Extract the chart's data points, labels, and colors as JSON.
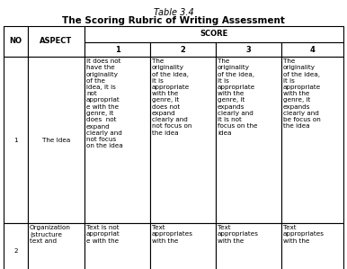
{
  "title1": "Table 3.4",
  "title2": "The Scoring Rubric of Writing Assessment",
  "score_header": "SCORE",
  "sub_headers": [
    "1",
    "2",
    "3",
    "4"
  ],
  "row1_no": "1",
  "row1_aspect": "The Idea",
  "row1_scores": [
    "It does not\nhave the\noriginality\nof the\nidea, it is\nnot\nappropriat\ne with the\ngenre, it\ndoes  not\nexpand\nclearly and\nnot focus\non the idea",
    "The\noriginality\nof the idea,\nit is\nappropriate\nwith the\ngenre, it\ndoes not\nexpand\nclearly and\nnot focus on\nthe idea",
    "The\noriginality\nof the idea,\nit is\nappropriate\nwith the\ngenre, it\nexpands\nclearly and\nit is not\nfocus on the\nidea",
    "The\noriginality\nof the idea,\nit is\nappropriate\nwith the\ngenre, it\nexpands\nclearly and\nbe focus on\nthe idea"
  ],
  "row2_no": "2",
  "row2_aspect": "Organization\n(structure\ntext and",
  "row2_scores": [
    "Text is not\nappropriat\ne with the",
    "Text\nappropriates\nwith the",
    "Text\nappropriates\nwith the",
    "Text\nappropriates\nwith the"
  ],
  "text_color": "#000000",
  "border_color": "#000000",
  "font_size": 5.2,
  "header_font_size": 6.0,
  "title_font_size_italic": 7.0,
  "title_font_size_bold": 7.5
}
